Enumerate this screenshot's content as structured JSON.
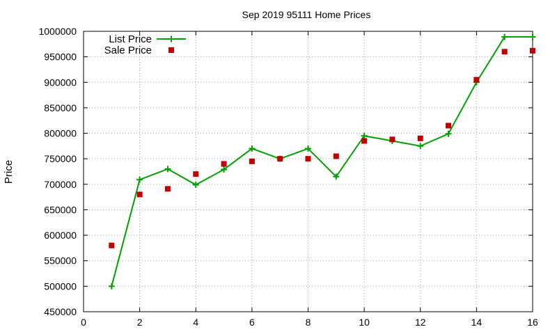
{
  "chart_data": {
    "type": "line",
    "title": "Sep 2019 95111 Home Prices",
    "xlabel": "",
    "ylabel": "Price",
    "xlim": [
      0,
      16
    ],
    "ylim": [
      450000,
      1000000
    ],
    "xticks": [
      0,
      2,
      4,
      6,
      8,
      10,
      12,
      14,
      16
    ],
    "yticks": [
      450000,
      500000,
      550000,
      600000,
      650000,
      700000,
      750000,
      800000,
      850000,
      900000,
      950000,
      1000000
    ],
    "grid": true,
    "legend_position": "top-left",
    "series": [
      {
        "name": "List Price",
        "style": "line+plus",
        "color": "#00a000",
        "x": [
          1,
          2,
          3,
          4,
          5,
          6,
          7,
          8,
          9,
          10,
          11,
          12,
          13,
          14,
          15,
          16
        ],
        "y": [
          500000,
          709000,
          730000,
          699000,
          729000,
          770000,
          750000,
          770000,
          715000,
          795000,
          785000,
          775000,
          799000,
          900000,
          989000,
          989000
        ]
      },
      {
        "name": "Sale Price",
        "style": "square-marker",
        "color": "#c00000",
        "x": [
          1,
          2,
          3,
          4,
          5,
          6,
          7,
          8,
          9,
          10,
          11,
          12,
          13,
          14,
          15,
          16
        ],
        "y": [
          580000,
          680000,
          691000,
          720000,
          740000,
          745000,
          750000,
          750000,
          755000,
          785000,
          788000,
          790000,
          815000,
          905000,
          960000,
          962000
        ]
      }
    ]
  }
}
